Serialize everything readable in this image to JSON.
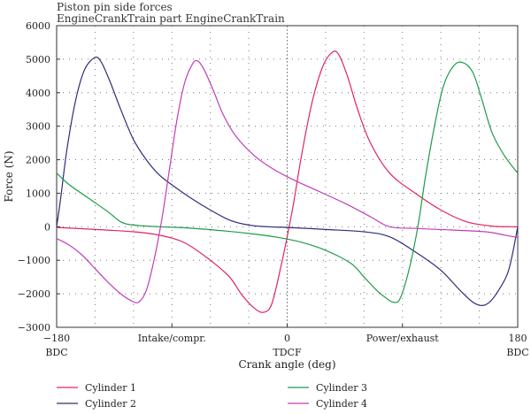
{
  "chart_data": {
    "type": "line",
    "title": [
      "Piston pin side forces",
      "EngineCrankTrain part EngineCrankTrain"
    ],
    "xlabel": "Crank angle (deg)",
    "ylabel": "Force (N)",
    "xlim": [
      -180,
      180
    ],
    "ylim": [
      -3000,
      6000
    ],
    "grid": true,
    "legend_position": "bottom",
    "y_ticks": [
      -3000,
      -2000,
      -1000,
      0,
      1000,
      2000,
      3000,
      4000,
      5000,
      6000
    ],
    "x_ticks": [
      {
        "value": -180,
        "lines": [
          "−180",
          "BDC"
        ]
      },
      {
        "value": -90,
        "lines": [
          "Intake/compr."
        ]
      },
      {
        "value": 0,
        "lines": [
          "0",
          "TDCF"
        ]
      },
      {
        "value": 90,
        "lines": [
          "Power/exhaust"
        ]
      },
      {
        "value": 180,
        "lines": [
          "180",
          "BDC"
        ]
      }
    ],
    "series": [
      {
        "name": "Cylinder 1",
        "color": "#e0245e",
        "points": [
          [
            -180,
            -20
          ],
          [
            -150,
            -80
          ],
          [
            -120,
            -150
          ],
          [
            -100,
            -250
          ],
          [
            -80,
            -480
          ],
          [
            -60,
            -1000
          ],
          [
            -45,
            -1500
          ],
          [
            -35,
            -2050
          ],
          [
            -25,
            -2450
          ],
          [
            -18,
            -2550
          ],
          [
            -12,
            -2300
          ],
          [
            -5,
            -1200
          ],
          [
            0,
            -300
          ],
          [
            5,
            700
          ],
          [
            12,
            2300
          ],
          [
            20,
            3800
          ],
          [
            28,
            4800
          ],
          [
            35,
            5200
          ],
          [
            40,
            5150
          ],
          [
            47,
            4500
          ],
          [
            55,
            3500
          ],
          [
            65,
            2500
          ],
          [
            80,
            1600
          ],
          [
            100,
            1000
          ],
          [
            120,
            500
          ],
          [
            140,
            150
          ],
          [
            160,
            20
          ],
          [
            175,
            0
          ],
          [
            180,
            0
          ]
        ]
      },
      {
        "name": "Cylinder 2",
        "color": "#2e2d7a",
        "points": [
          [
            -180,
            0
          ],
          [
            -177,
            800
          ],
          [
            -172,
            2300
          ],
          [
            -165,
            3800
          ],
          [
            -158,
            4700
          ],
          [
            -150,
            5050
          ],
          [
            -145,
            4900
          ],
          [
            -138,
            4300
          ],
          [
            -130,
            3500
          ],
          [
            -120,
            2600
          ],
          [
            -110,
            2000
          ],
          [
            -100,
            1550
          ],
          [
            -90,
            1250
          ],
          [
            -75,
            850
          ],
          [
            -60,
            500
          ],
          [
            -45,
            200
          ],
          [
            -30,
            50
          ],
          [
            -15,
            0
          ],
          [
            0,
            -20
          ],
          [
            30,
            -80
          ],
          [
            60,
            -150
          ],
          [
            80,
            -300
          ],
          [
            100,
            -750
          ],
          [
            120,
            -1300
          ],
          [
            135,
            -1900
          ],
          [
            145,
            -2250
          ],
          [
            152,
            -2350
          ],
          [
            158,
            -2250
          ],
          [
            165,
            -1900
          ],
          [
            172,
            -1400
          ],
          [
            176,
            -800
          ],
          [
            180,
            0
          ]
        ]
      },
      {
        "name": "Cylinder 3",
        "color": "#1f9a4a",
        "points": [
          [
            -180,
            1600
          ],
          [
            -170,
            1250
          ],
          [
            -155,
            850
          ],
          [
            -140,
            450
          ],
          [
            -130,
            150
          ],
          [
            -120,
            50
          ],
          [
            -100,
            0
          ],
          [
            -80,
            -30
          ],
          [
            -50,
            -120
          ],
          [
            -30,
            -200
          ],
          [
            -10,
            -300
          ],
          [
            10,
            -450
          ],
          [
            30,
            -700
          ],
          [
            50,
            -1100
          ],
          [
            60,
            -1500
          ],
          [
            70,
            -1900
          ],
          [
            78,
            -2150
          ],
          [
            83,
            -2250
          ],
          [
            88,
            -2150
          ],
          [
            95,
            -1300
          ],
          [
            102,
            0
          ],
          [
            108,
            1500
          ],
          [
            115,
            3000
          ],
          [
            122,
            4200
          ],
          [
            130,
            4800
          ],
          [
            137,
            4900
          ],
          [
            145,
            4600
          ],
          [
            152,
            3800
          ],
          [
            160,
            2800
          ],
          [
            170,
            2100
          ],
          [
            180,
            1600
          ]
        ]
      },
      {
        "name": "Cylinder 4",
        "color": "#c23cb8",
        "points": [
          [
            -180,
            -350
          ],
          [
            -170,
            -550
          ],
          [
            -160,
            -850
          ],
          [
            -150,
            -1250
          ],
          [
            -140,
            -1650
          ],
          [
            -130,
            -2000
          ],
          [
            -122,
            -2200
          ],
          [
            -116,
            -2250
          ],
          [
            -110,
            -1900
          ],
          [
            -104,
            -1000
          ],
          [
            -98,
            200
          ],
          [
            -92,
            1700
          ],
          [
            -86,
            3200
          ],
          [
            -80,
            4300
          ],
          [
            -74,
            4850
          ],
          [
            -70,
            4950
          ],
          [
            -65,
            4700
          ],
          [
            -58,
            4100
          ],
          [
            -50,
            3350
          ],
          [
            -40,
            2700
          ],
          [
            -25,
            2100
          ],
          [
            -10,
            1700
          ],
          [
            5,
            1400
          ],
          [
            25,
            1050
          ],
          [
            45,
            700
          ],
          [
            65,
            300
          ],
          [
            80,
            0
          ],
          [
            100,
            -50
          ],
          [
            130,
            -100
          ],
          [
            155,
            -150
          ],
          [
            170,
            -250
          ],
          [
            180,
            -320
          ]
        ]
      }
    ]
  }
}
